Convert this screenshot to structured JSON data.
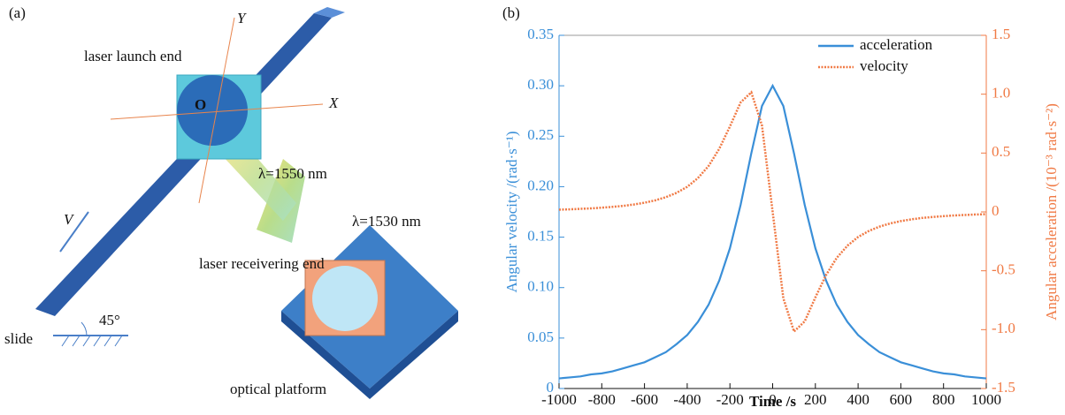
{
  "diagram": {
    "panel": "(a)",
    "y_axis": "Y",
    "x_axis": "X",
    "launch": "laser launch end",
    "origin": "O",
    "lambda1": "λ=1550 nm",
    "lambda2": "λ=1530 nm",
    "velocity": "V",
    "receiver": "laser receivering end",
    "angle": "45°",
    "slide": "slide",
    "platform": "optical platform"
  },
  "chart_data": {
    "type": "line",
    "panel": "(b)",
    "xlabel": "Time /s",
    "ylabel": "Angular velocity /(rad·s⁻¹)",
    "y2label": "Angular acceleration /(10⁻³ rad·s⁻²)",
    "x": [
      -1000,
      -950,
      -900,
      -850,
      -800,
      -750,
      -700,
      -650,
      -600,
      -550,
      -500,
      -450,
      -400,
      -350,
      -300,
      -250,
      -200,
      -150,
      -100,
      -50,
      0,
      50,
      100,
      150,
      200,
      250,
      300,
      350,
      400,
      450,
      500,
      550,
      600,
      650,
      700,
      750,
      800,
      850,
      900,
      950,
      1000
    ],
    "series": [
      {
        "name": "acceleration",
        "color": "#3a8fd8",
        "values": [
          0.01,
          0.011,
          0.012,
          0.014,
          0.015,
          0.017,
          0.02,
          0.023,
          0.026,
          0.031,
          0.036,
          0.044,
          0.053,
          0.066,
          0.083,
          0.107,
          0.139,
          0.182,
          0.233,
          0.28,
          0.3,
          0.28,
          0.233,
          0.182,
          0.139,
          0.107,
          0.083,
          0.066,
          0.053,
          0.044,
          0.036,
          0.031,
          0.026,
          0.023,
          0.02,
          0.017,
          0.015,
          0.014,
          0.012,
          0.011,
          0.01
        ]
      },
      {
        "name": "velocity",
        "color": "#f07a45",
        "axis": "y2",
        "values": [
          0.019,
          0.022,
          0.026,
          0.03,
          0.036,
          0.043,
          0.051,
          0.063,
          0.078,
          0.098,
          0.125,
          0.162,
          0.213,
          0.287,
          0.39,
          0.536,
          0.726,
          0.93,
          1.016,
          0.734,
          0,
          -0.734,
          -1.016,
          -0.93,
          -0.726,
          -0.536,
          -0.39,
          -0.287,
          -0.213,
          -0.162,
          -0.125,
          -0.098,
          -0.078,
          -0.063,
          -0.051,
          -0.043,
          -0.036,
          -0.03,
          -0.026,
          -0.022,
          -0.019
        ]
      }
    ],
    "xlim": [
      -1000,
      1000
    ],
    "xticks": [
      -1000,
      -800,
      -600,
      -400,
      -200,
      0,
      200,
      400,
      600,
      800,
      1000
    ],
    "ylim": [
      0,
      0.35
    ],
    "yticks": [
      0,
      0.05,
      {
        "value": 0.1,
        "label": "0.10"
      },
      0.15,
      {
        "value": 0.2,
        "label": "0.20"
      },
      0.25,
      {
        "value": 0.3,
        "label": "0.30"
      },
      0.35
    ],
    "y2lim": [
      -1.5,
      1.5
    ],
    "y2ticks": [
      -1.5,
      {
        "value": -1,
        "label": "-1.0"
      },
      -0.5,
      0,
      0.5,
      {
        "value": 1,
        "label": "1.0"
      },
      1.5
    ],
    "legend": "upper right"
  }
}
